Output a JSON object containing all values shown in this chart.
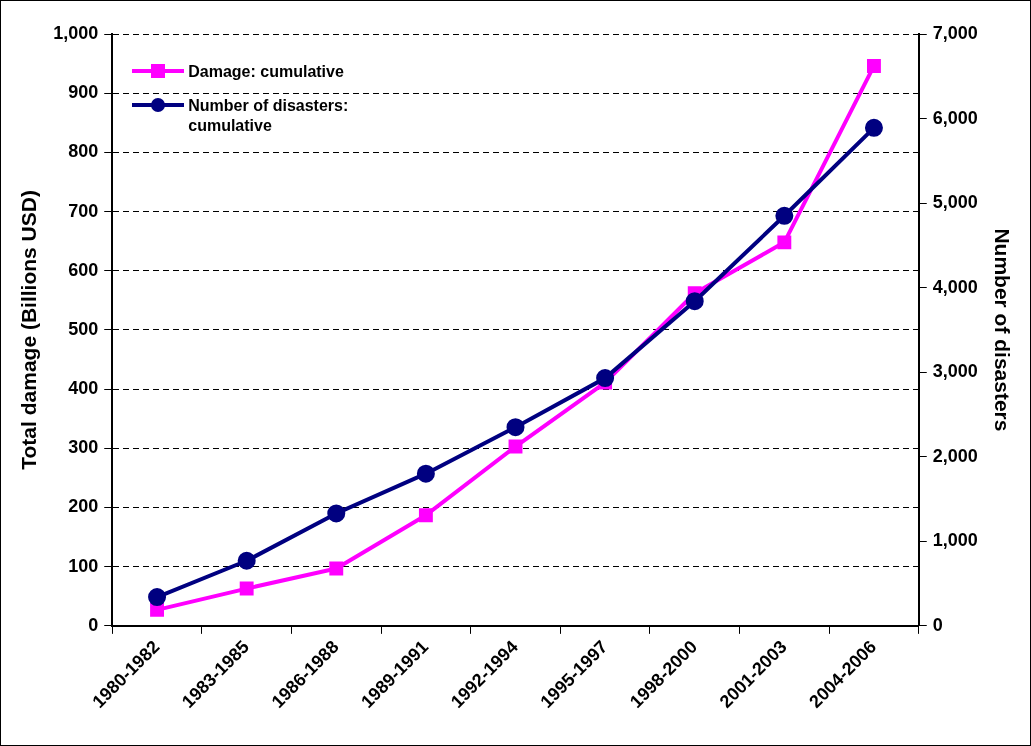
{
  "chart_data": {
    "type": "line",
    "categories": [
      "1980-1982",
      "1983-1985",
      "1986-1988",
      "1989-1991",
      "1992-1994",
      "1995-1997",
      "1998-2000",
      "2001-2003",
      "2004-2006"
    ],
    "series": [
      {
        "name": "Damage: cumulative",
        "color": "#ff00ff",
        "marker": "square",
        "values": [
          27,
          63,
          97,
          187,
          303,
          411,
          562,
          648,
          946
        ]
      },
      {
        "name": "Number of disasters: cumulative",
        "color": "#000080",
        "marker": "circle",
        "axis": "y2",
        "values": [
          340,
          770,
          1330,
          1800,
          2350,
          2930,
          3840,
          4850,
          5890
        ]
      }
    ],
    "ylabel": "Total damage (Billions USD)",
    "y2label": "Number of disasters",
    "ylim": [
      0,
      1000
    ],
    "yticks": [
      0,
      100,
      200,
      300,
      400,
      500,
      600,
      700,
      800,
      900,
      {
        "value": 1000,
        "label": "1,000"
      }
    ],
    "y2lim": [
      0,
      7000
    ],
    "y2ticks": [
      0,
      {
        "value": 1000,
        "label": "1,000"
      },
      {
        "value": 2000,
        "label": "2,000"
      },
      {
        "value": 3000,
        "label": "3,000"
      },
      {
        "value": 4000,
        "label": "4,000"
      },
      {
        "value": 5000,
        "label": "5,000"
      },
      {
        "value": 6000,
        "label": "6,000"
      },
      {
        "value": 7000,
        "label": "7,000"
      }
    ],
    "grid": "y",
    "legend": "top left",
    "line_style": "solid"
  }
}
